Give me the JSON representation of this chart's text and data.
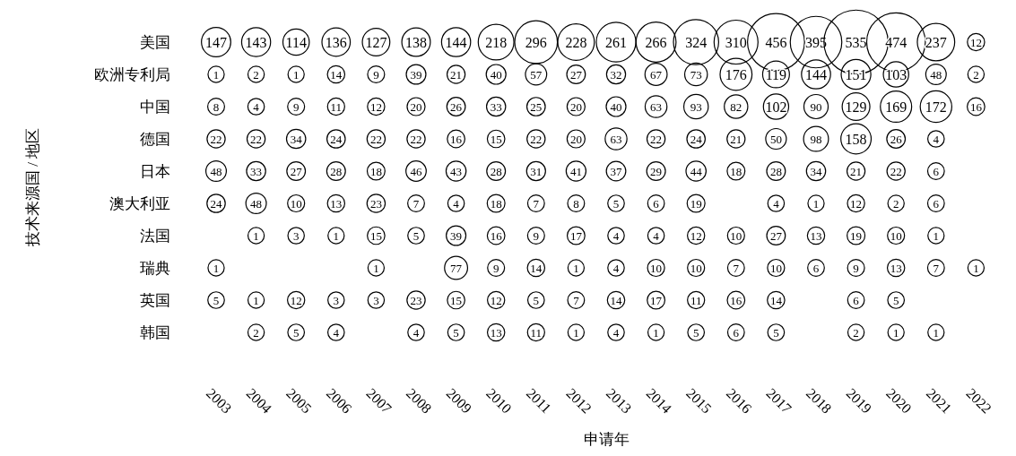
{
  "chart_data": {
    "type": "heatmap",
    "xlabel": "申请年",
    "ylabel": "技术来源国 / 地区",
    "data_labels": true,
    "categories": [
      "2003",
      "2004",
      "2005",
      "2006",
      "2007",
      "2008",
      "2009",
      "2010",
      "2011",
      "2012",
      "2013",
      "2014",
      "2015",
      "2016",
      "2017",
      "2018",
      "2019",
      "2020",
      "2021",
      "2022"
    ],
    "y_categories": [
      "美国",
      "欧洲专利局",
      "中国",
      "德国",
      "日本",
      "澳大利亚",
      "法国",
      "瑞典",
      "英国",
      "韩国"
    ],
    "cells": [
      [
        147,
        143,
        114,
        136,
        127,
        138,
        144,
        218,
        296,
        228,
        261,
        266,
        324,
        310,
        456,
        395,
        535,
        474,
        237,
        12
      ],
      [
        1,
        2,
        1,
        14,
        9,
        39,
        21,
        40,
        57,
        27,
        32,
        67,
        73,
        176,
        119,
        144,
        151,
        103,
        48,
        2
      ],
      [
        8,
        4,
        9,
        11,
        12,
        20,
        26,
        33,
        25,
        20,
        40,
        63,
        93,
        82,
        102,
        90,
        129,
        169,
        172,
        16
      ],
      [
        22,
        22,
        34,
        24,
        22,
        22,
        16,
        15,
        22,
        20,
        63,
        22,
        24,
        21,
        50,
        98,
        158,
        26,
        4,
        null
      ],
      [
        48,
        33,
        27,
        28,
        18,
        46,
        43,
        28,
        31,
        41,
        37,
        29,
        44,
        18,
        28,
        34,
        21,
        22,
        6,
        null
      ],
      [
        24,
        48,
        10,
        13,
        23,
        7,
        4,
        18,
        7,
        8,
        5,
        6,
        19,
        null,
        4,
        1,
        12,
        2,
        6,
        null
      ],
      [
        null,
        1,
        3,
        1,
        15,
        5,
        39,
        16,
        9,
        17,
        4,
        4,
        12,
        10,
        27,
        13,
        19,
        10,
        1,
        null
      ],
      [
        1,
        null,
        null,
        null,
        1,
        null,
        77,
        9,
        14,
        1,
        4,
        10,
        10,
        7,
        10,
        6,
        9,
        13,
        7,
        1
      ],
      [
        5,
        1,
        12,
        3,
        3,
        23,
        15,
        12,
        5,
        7,
        14,
        17,
        11,
        16,
        14,
        null,
        6,
        5,
        null,
        null
      ],
      [
        null,
        2,
        5,
        4,
        null,
        4,
        5,
        13,
        11,
        1,
        4,
        1,
        5,
        6,
        5,
        null,
        2,
        1,
        1,
        null
      ]
    ]
  }
}
